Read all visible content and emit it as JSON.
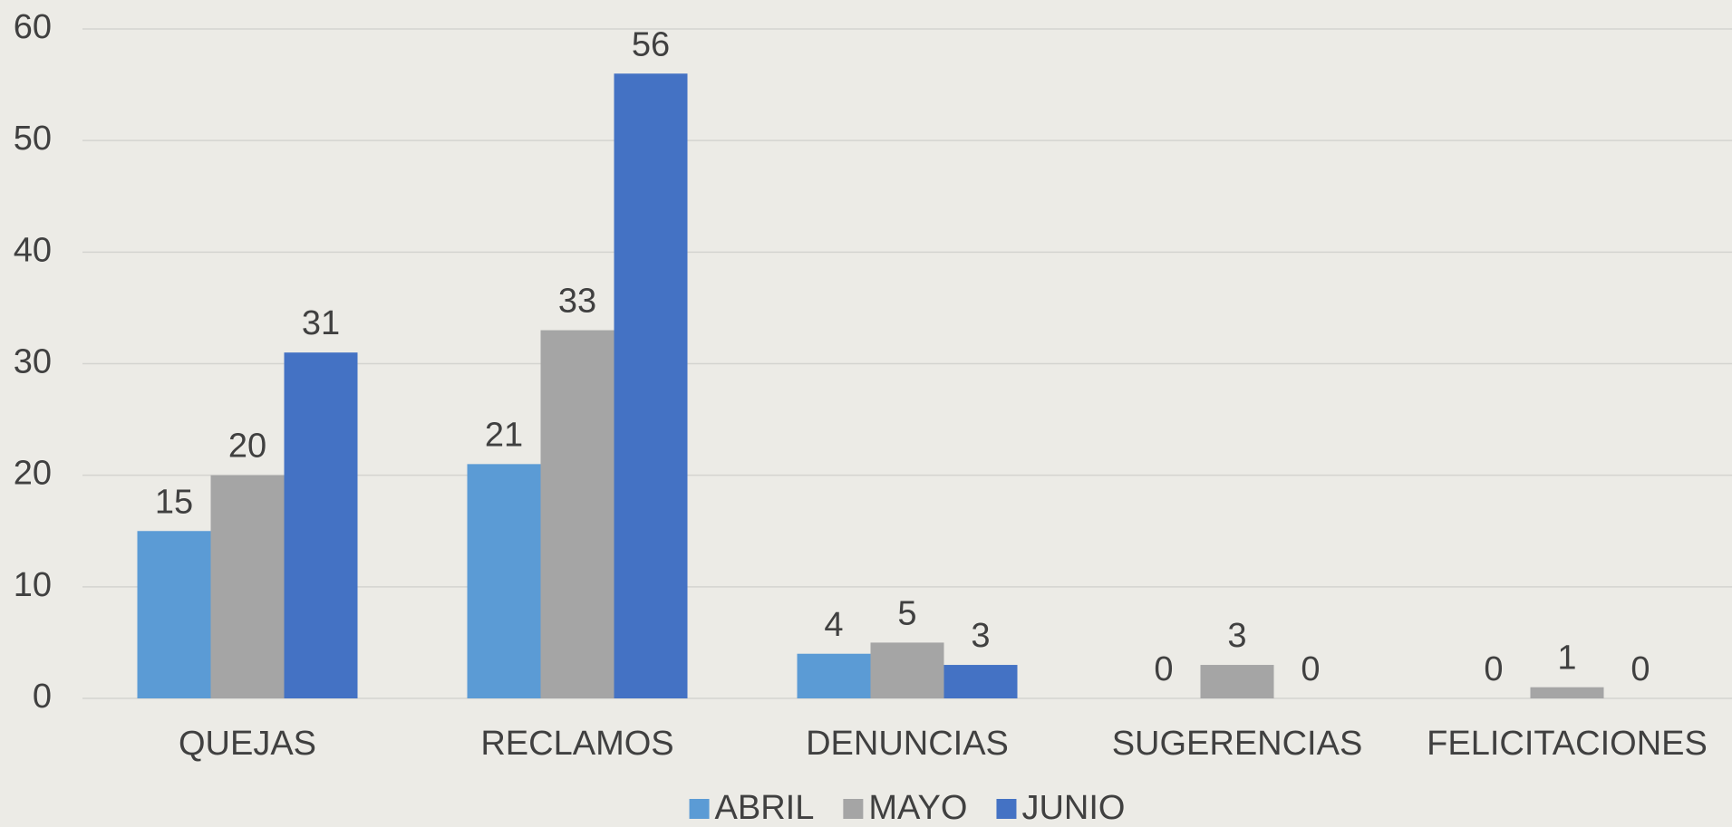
{
  "chart_data": {
    "type": "bar",
    "categories": [
      "QUEJAS",
      "RECLAMOS",
      "DENUNCIAS",
      "SUGERENCIAS",
      "FELICITACIONES"
    ],
    "series": [
      {
        "name": "ABRIL",
        "color": "#5b9bd5",
        "values": [
          15,
          21,
          4,
          0,
          0
        ]
      },
      {
        "name": "MAYO",
        "color": "#a5a5a5",
        "values": [
          20,
          33,
          5,
          3,
          1
        ]
      },
      {
        "name": "JUNIO",
        "color": "#4472c4",
        "values": [
          31,
          56,
          3,
          0,
          0
        ]
      }
    ],
    "ylim": [
      0,
      60
    ],
    "yticks": [
      0,
      10,
      20,
      30,
      40,
      50,
      60
    ],
    "grid": true,
    "legend": "bottom"
  }
}
